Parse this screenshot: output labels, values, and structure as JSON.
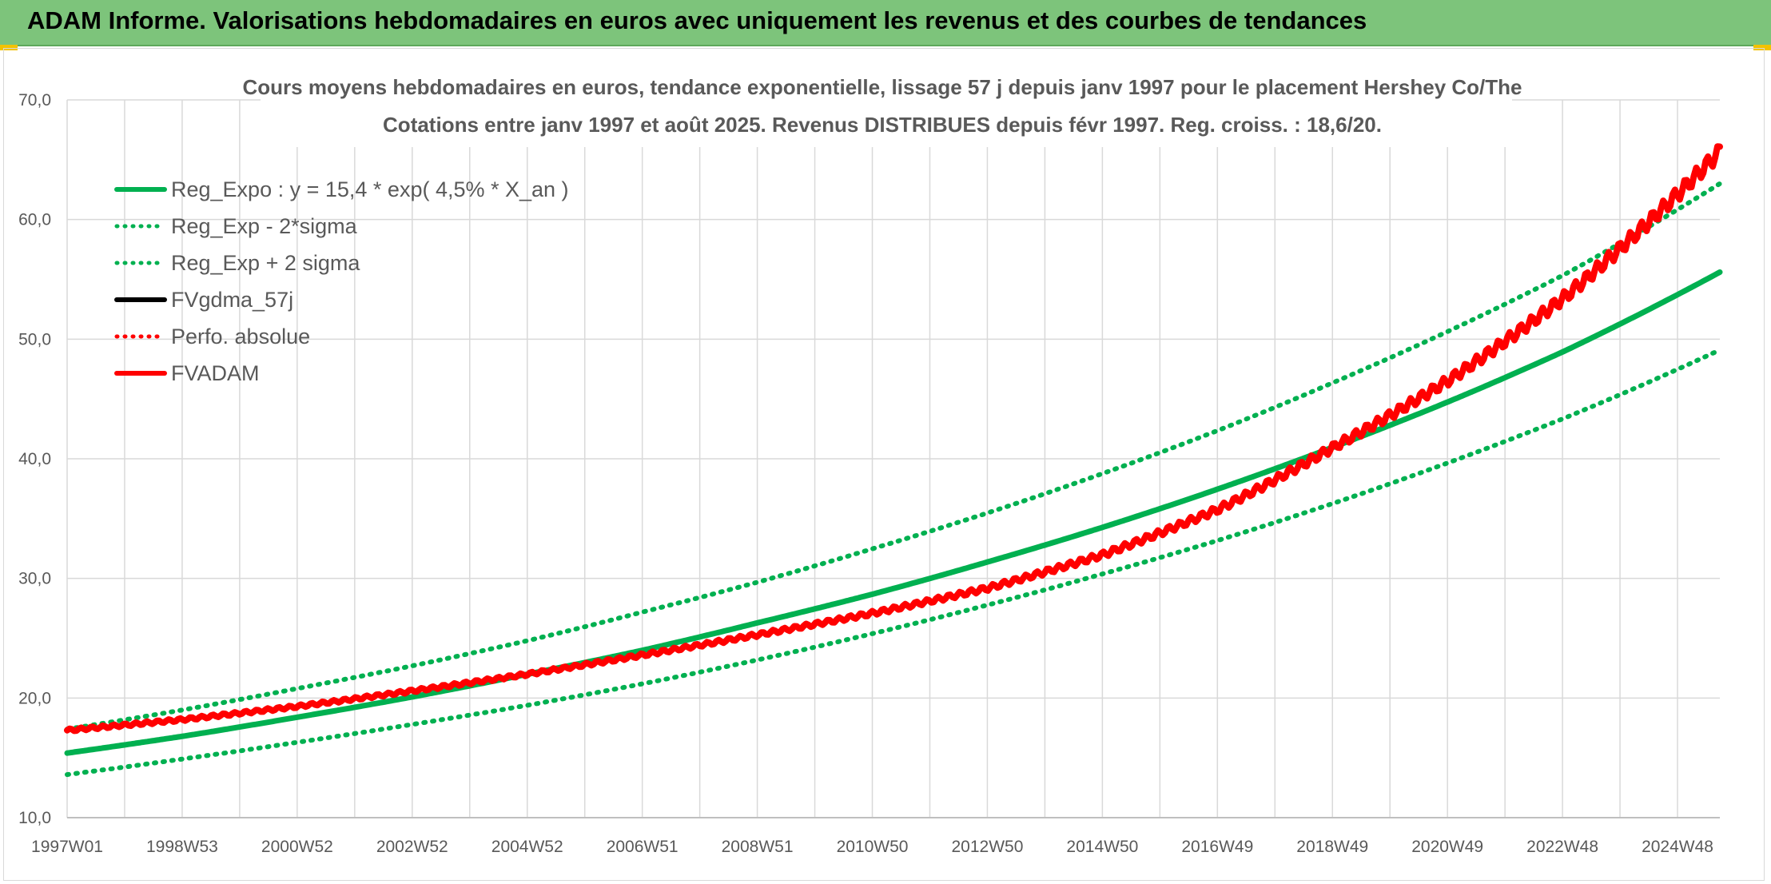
{
  "header": {
    "title": "ADAM Informe. Valorisations hebdomadaires en euros avec uniquement les revenus et des courbes de tendances"
  },
  "colors": {
    "header_bg": "#7dc47b",
    "green": "#00b050",
    "red": "#ff0000",
    "black": "#000000",
    "grid": "#d9d9d9",
    "text": "#595959",
    "accent_yellow": "#f2c200"
  },
  "chart_data": {
    "type": "line",
    "title_line1": "Cours moyens hebdomadaires en euros, tendance exponentielle, lissage 57 j depuis janv 1997 pour le placement Hershey Co/The",
    "title_line2": "Cotations entre janv 1997 et août 2025. Revenus DISTRIBUES depuis févr 1997. Reg. croiss. : 18,6/20.",
    "xlabel": "",
    "ylabel": "",
    "x_start_year": 1997.0,
    "x_end_year": 2025.7,
    "x_tick_labels": [
      "1997W01",
      "1998W53",
      "2000W52",
      "2002W52",
      "2004W52",
      "2006W51",
      "2008W51",
      "2010W50",
      "2012W50",
      "2014W50",
      "2016W49",
      "2018W49",
      "2020W49",
      "2022W48",
      "2024W48"
    ],
    "y_tick_labels": [
      "10,0",
      "20,0",
      "30,0",
      "40,0",
      "50,0",
      "60,0",
      "70,0"
    ],
    "ylim": [
      10,
      70
    ],
    "y_ticks": [
      10,
      20,
      30,
      40,
      50,
      60,
      70
    ],
    "grid": true,
    "legend_position": "top-left",
    "legend": [
      {
        "label": "Reg_Expo : y = 15,4 * exp( 4,5% *  X_an )",
        "color": "#00b050",
        "style": "solid"
      },
      {
        "label": "Reg_Exp - 2*sigma",
        "color": "#00b050",
        "style": "dotted"
      },
      {
        "label": "Reg_Exp + 2 sigma",
        "color": "#00b050",
        "style": "dotted"
      },
      {
        "label": "FVgdma_57j",
        "color": "#000000",
        "style": "solid"
      },
      {
        "label": "Perfo. absolue",
        "color": "#ff0000",
        "style": "dotted"
      },
      {
        "label": "FVADAM",
        "color": "#ff0000",
        "style": "solid"
      }
    ],
    "series": [
      {
        "name": "Reg_Expo : y = 15,4 * exp( 4,5% *  X_an )",
        "x_years": [
          1997.0,
          1999.0,
          2001.0,
          2003.0,
          2005.0,
          2007.0,
          2009.0,
          2011.0,
          2013.0,
          2015.0,
          2017.0,
          2019.0,
          2021.0,
          2023.0,
          2025.7
        ],
        "values": [
          15.4,
          16.8,
          18.4,
          20.1,
          22.0,
          24.0,
          26.3,
          28.7,
          31.4,
          34.3,
          37.5,
          41.0,
          44.8,
          49.0,
          55.6
        ]
      },
      {
        "name": "Reg_Exp - 2*sigma",
        "x_years": [
          1997.0,
          1999.0,
          2001.0,
          2003.0,
          2005.0,
          2007.0,
          2009.0,
          2011.0,
          2013.0,
          2015.0,
          2017.0,
          2019.0,
          2021.0,
          2023.0,
          2025.7
        ],
        "values": [
          13.6,
          14.9,
          16.3,
          17.8,
          19.4,
          21.2,
          23.2,
          25.4,
          27.8,
          30.4,
          33.2,
          36.3,
          39.7,
          43.4,
          49.1
        ]
      },
      {
        "name": "Reg_Exp + 2 sigma",
        "x_years": [
          1997.0,
          1999.0,
          2001.0,
          2003.0,
          2005.0,
          2007.0,
          2009.0,
          2011.0,
          2013.0,
          2015.0,
          2017.0,
          2019.0,
          2021.0,
          2023.0,
          2025.7
        ],
        "values": [
          17.4,
          19.0,
          20.8,
          22.7,
          24.8,
          27.2,
          29.7,
          32.5,
          35.5,
          38.8,
          42.4,
          46.4,
          50.7,
          55.4,
          63.0
        ]
      },
      {
        "name": "FVADAM",
        "x_years": [
          1997.0,
          1999.0,
          2001.0,
          2003.0,
          2005.0,
          2007.0,
          2009.0,
          2011.0,
          2013.0,
          2015.0,
          2017.0,
          2019.0,
          2021.0,
          2023.0,
          2025.7
        ],
        "values": [
          17.3,
          18.2,
          19.3,
          20.6,
          22.0,
          23.6,
          25.3,
          27.1,
          29.2,
          32.0,
          35.8,
          41.0,
          46.6,
          53.5,
          65.7
        ]
      }
    ]
  }
}
